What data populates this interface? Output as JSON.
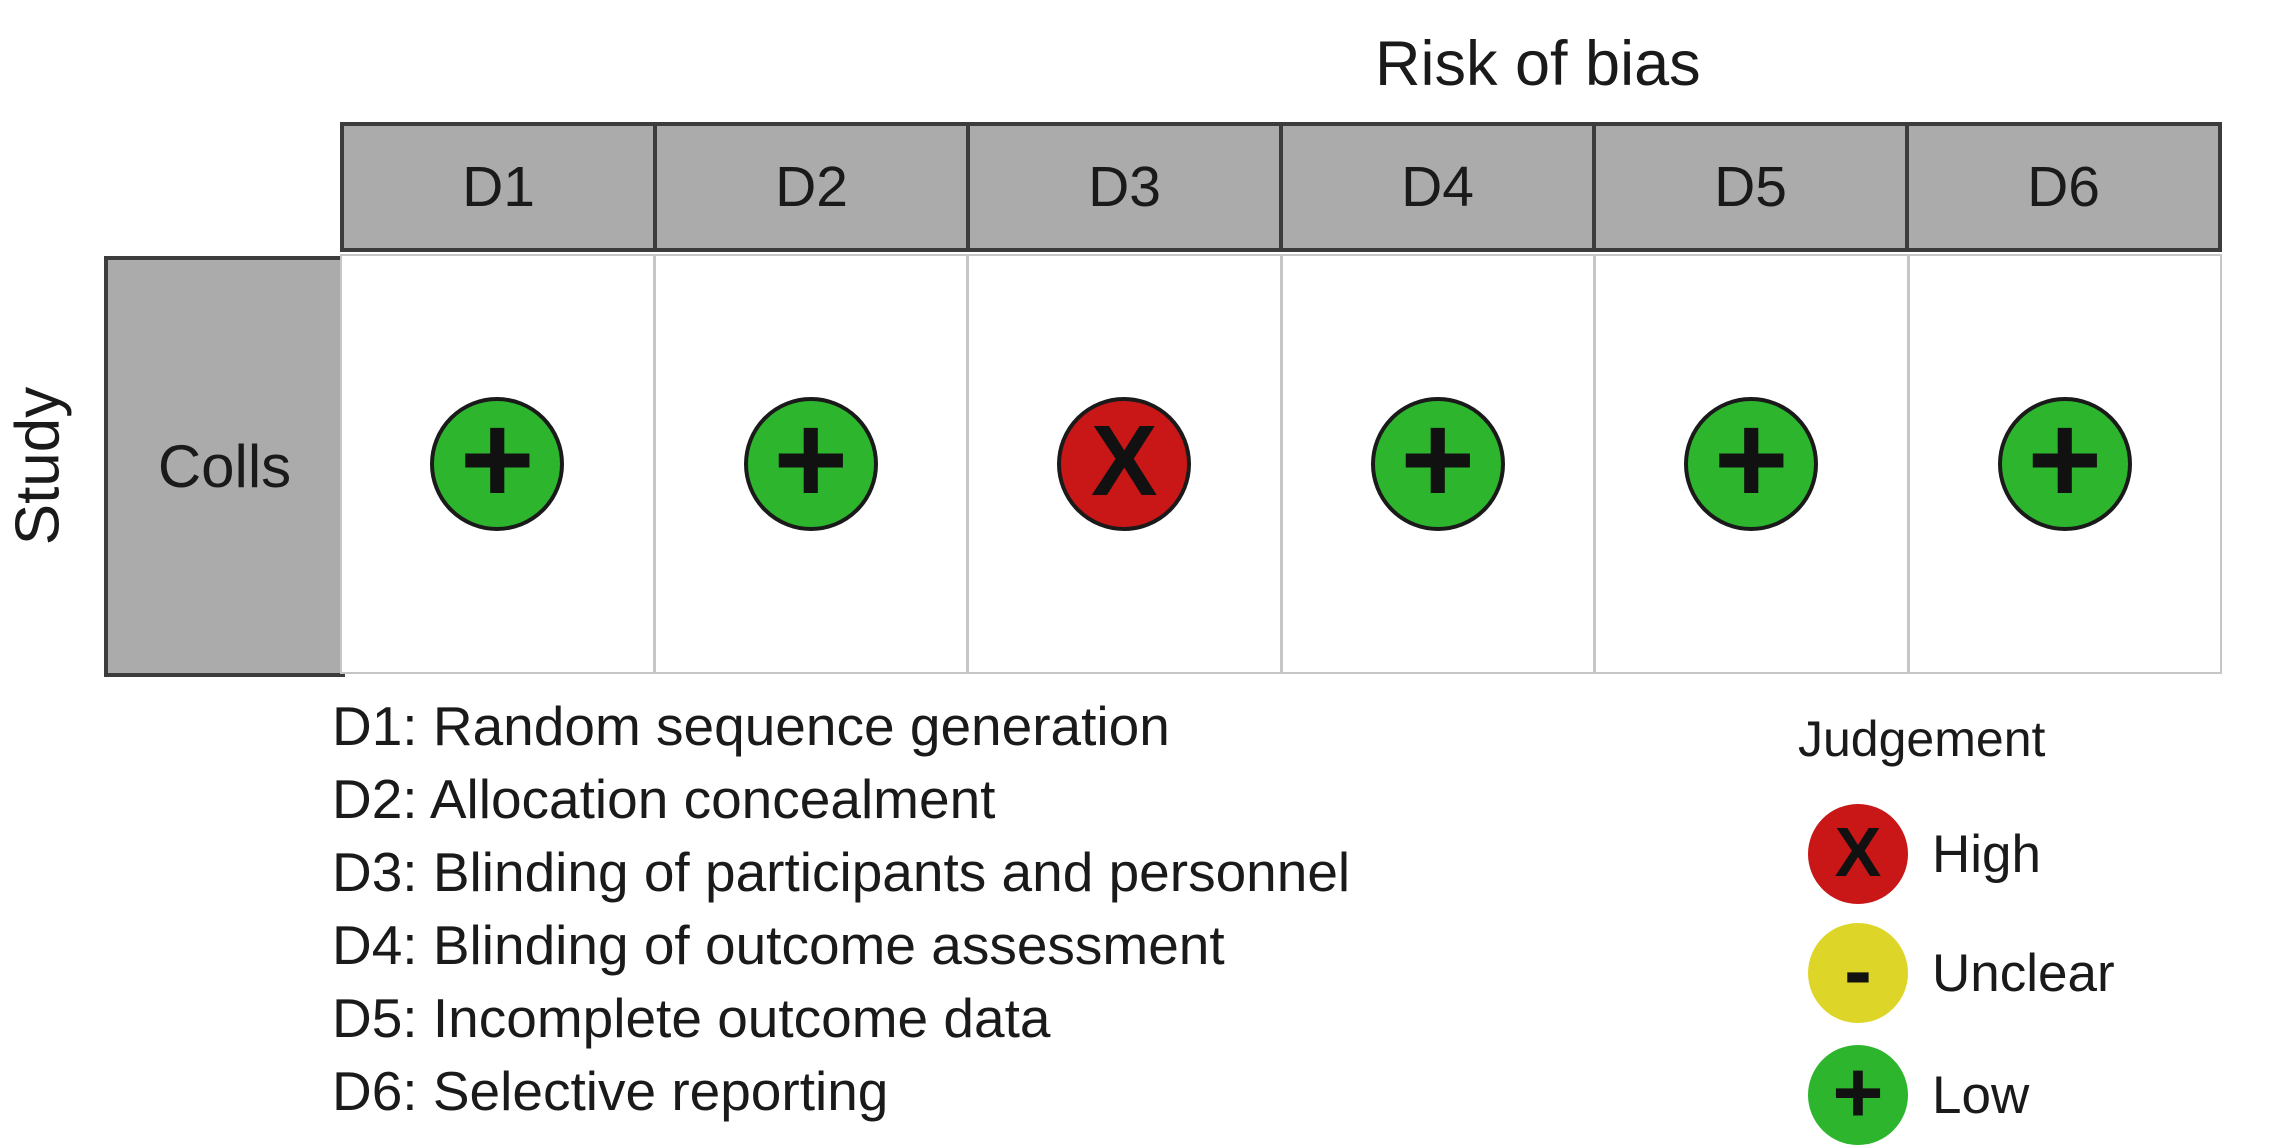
{
  "title": "Risk of bias",
  "study_axis_label": "Study",
  "columns": [
    "D1",
    "D2",
    "D3",
    "D4",
    "D5",
    "D6"
  ],
  "rows": [
    {
      "study": "Colls",
      "cells": [
        "low",
        "low",
        "high",
        "low",
        "low",
        "low"
      ]
    }
  ],
  "symbols": {
    "high": "X",
    "unclear": "-",
    "low": "+"
  },
  "colors": {
    "high": "#c91616",
    "unclear": "#ddd628",
    "low": "#2db52d",
    "header_fill": "#ababab",
    "header_border": "#3c3c3c",
    "grid_line": "#c6c6c6",
    "circle_outline": "#1a1a1a",
    "text": "#1a1a1a"
  },
  "footnotes": [
    "D1: Random sequence generation",
    "D2: Allocation concealment",
    "D3: Blinding of participants and personnel",
    "D4: Blinding of outcome assessment",
    "D5: Incomplete outcome data",
    "D6: Selective reporting"
  ],
  "legend": {
    "title": "Judgement",
    "items": [
      {
        "label": "High",
        "level": "high"
      },
      {
        "label": "Unclear",
        "level": "unclear"
      },
      {
        "label": "Low",
        "level": "low"
      }
    ]
  },
  "chart_data": {
    "type": "heatmap",
    "title": "Risk of bias",
    "x_categories": [
      "D1",
      "D2",
      "D3",
      "D4",
      "D5",
      "D6"
    ],
    "y_categories": [
      "Colls"
    ],
    "values": [
      [
        "Low",
        "Low",
        "High",
        "Low",
        "Low",
        "Low"
      ]
    ],
    "xlabel": "Risk of bias",
    "ylabel": "Study",
    "cell_symbols": [
      [
        "+",
        "+",
        "X",
        "+",
        "+",
        "+"
      ]
    ],
    "legend_position": "bottom-right",
    "legend": {
      "title": "Judgement",
      "entries": [
        {
          "label": "High",
          "symbol": "X",
          "color": "#c91616"
        },
        {
          "label": "Unclear",
          "symbol": "-",
          "color": "#ddd628"
        },
        {
          "label": "Low",
          "symbol": "+",
          "color": "#2db52d"
        }
      ]
    },
    "domain_definitions": [
      "D1: Random sequence generation",
      "D2: Allocation concealment",
      "D3: Blinding of participants and personnel",
      "D4: Blinding of outcome assessment",
      "D5: Incomplete outcome data",
      "D6: Selective reporting"
    ]
  }
}
